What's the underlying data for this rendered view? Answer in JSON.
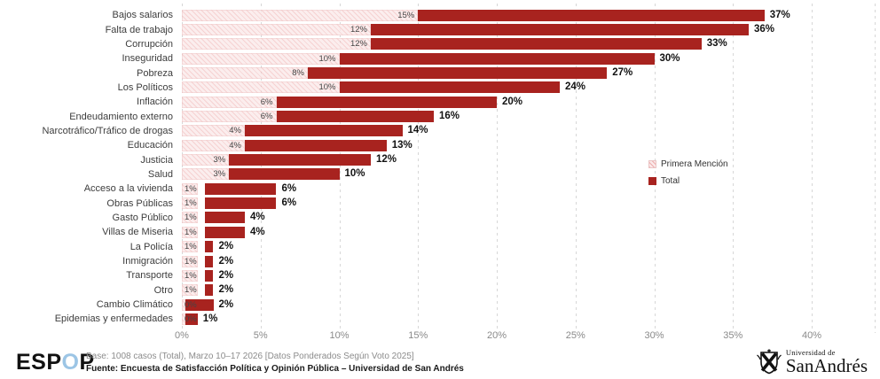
{
  "chart_data": {
    "type": "bar",
    "orientation": "horizontal",
    "categories": [
      "Bajos salarios",
      "Falta de trabajo",
      "Corrupción",
      "Inseguridad",
      "Pobreza",
      "Los Políticos",
      "Inflación",
      "Endeudamiento externo",
      "Narcotráfico/Tráfico de drogas",
      "Educación",
      "Justicia",
      "Salud",
      "Acceso a la vivienda",
      "Obras Públicas",
      "Gasto Público",
      "Villas de Miseria",
      "La Policía",
      "Inmigración",
      "Transporte",
      "Otro",
      "Cambio Climático",
      "Epidemias y enfermedades"
    ],
    "series": [
      {
        "name": "Primera Mención",
        "values": [
          15,
          12,
          12,
          10,
          8,
          10,
          6,
          6,
          4,
          4,
          3,
          3,
          1,
          1,
          1,
          1,
          1,
          1,
          1,
          1,
          0,
          0
        ]
      },
      {
        "name": "Total",
        "values": [
          37,
          36,
          33,
          30,
          27,
          24,
          20,
          16,
          14,
          13,
          12,
          10,
          6,
          6,
          4,
          4,
          2,
          2,
          2,
          2,
          2,
          1
        ]
      }
    ],
    "value_suffix": "%",
    "x_ticks": [
      "0%",
      "5%",
      "10%",
      "15%",
      "20%",
      "25%",
      "30%",
      "35%",
      "40%"
    ],
    "x_tick_values": [
      0,
      5,
      10,
      15,
      20,
      25,
      30,
      35,
      40
    ],
    "xlim": [
      0,
      44
    ],
    "grid": "dashed-vertical",
    "legend_position": "inside-right",
    "colors": {
      "total_bar": "#a8231f",
      "primera_bar": "hatched-pink",
      "gridline": "#d7d7d7"
    }
  },
  "legend": {
    "primera_label": "Primera Mención",
    "total_label": "Total"
  },
  "footer": {
    "espop_pre": "ESP",
    "espop_o": "O",
    "espop_post": "P",
    "base_line": "Base: 1008 casos (Total), Marzo 10–17 2026 [Datos Ponderados Según Voto 2025]",
    "fuente_line": "Fuente: Encuesta de Satisfacción Política y Opinión Pública – Universidad de San Andrés",
    "university_small": "Universidad de",
    "university_big": "SanAndrés"
  }
}
